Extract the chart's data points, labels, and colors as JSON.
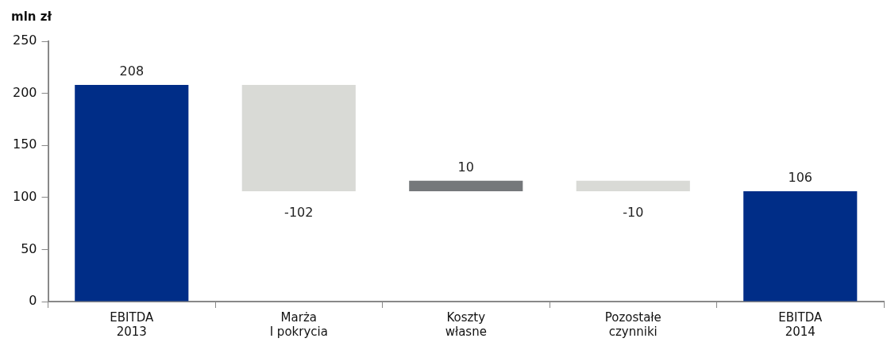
{
  "chart_data": {
    "type": "bar",
    "ylabel": "mln zł",
    "categories": [
      "EBITDA\n2013",
      "Marża\nI pokrycia",
      "Koszty\nwłasne",
      "Pozostałe\nczynniki",
      "EBITDA\n2014"
    ],
    "values": [
      208,
      -102,
      10,
      -10,
      106
    ],
    "base": [
      0,
      208,
      106,
      116,
      0
    ],
    "colors": [
      "#002d87",
      "#d9dad6",
      "#75787b",
      "#d9dad6",
      "#002d87"
    ],
    "ylim": [
      0,
      250
    ],
    "yticks": [
      0,
      50,
      100,
      150,
      200,
      250
    ],
    "grid": false,
    "legend": false,
    "data_labels": true
  }
}
